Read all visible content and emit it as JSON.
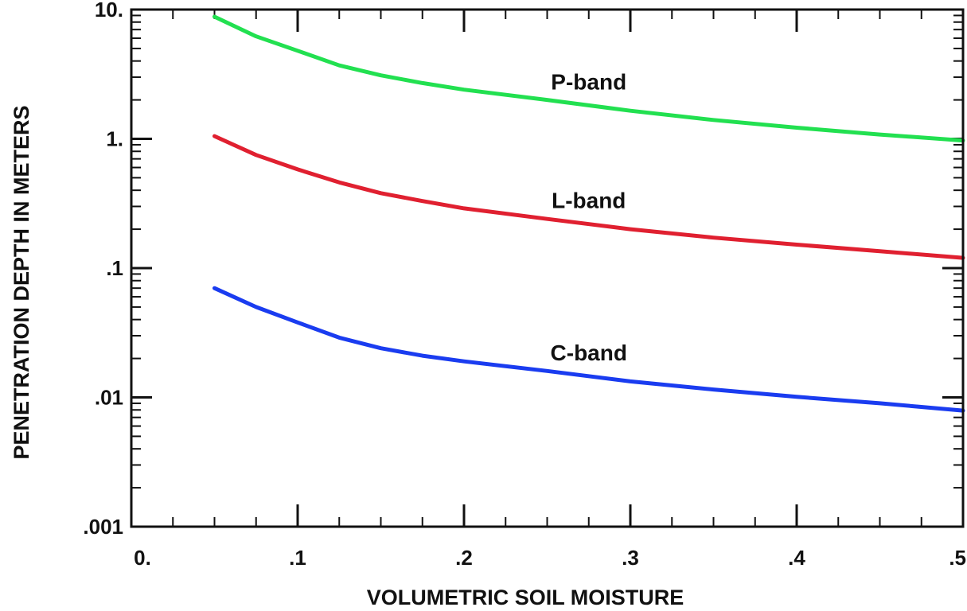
{
  "chart_data": {
    "type": "line",
    "title": "",
    "xlabel": "VOLUMETRIC SOIL MOISTURE",
    "ylabel": "PENETRATION DEPTH IN METERS",
    "xlim": [
      0,
      0.5
    ],
    "ylim": [
      0.001,
      10
    ],
    "yscale": "log",
    "grid": false,
    "x_ticks": [
      0,
      0.1,
      0.2,
      0.3,
      0.4,
      0.5
    ],
    "x_tick_labels": [
      "0.",
      ".1",
      ".2",
      ".3",
      ".4",
      ".5"
    ],
    "y_ticks": [
      10,
      1,
      0.1,
      0.01,
      0.001
    ],
    "y_tick_labels": [
      "10.",
      "1.",
      ".1",
      ".01",
      ".001"
    ],
    "x": [
      0.05,
      0.075,
      0.1,
      0.125,
      0.15,
      0.175,
      0.2,
      0.25,
      0.3,
      0.35,
      0.4,
      0.45,
      0.5
    ],
    "series": [
      {
        "name": "P-band",
        "color": "#22e050",
        "values": [
          8.8,
          6.2,
          4.8,
          3.7,
          3.1,
          2.7,
          2.4,
          2.0,
          1.65,
          1.4,
          1.22,
          1.08,
          0.97
        ]
      },
      {
        "name": "L-band",
        "color": "#e02030",
        "values": [
          1.05,
          0.75,
          0.58,
          0.46,
          0.38,
          0.33,
          0.29,
          0.24,
          0.2,
          0.172,
          0.152,
          0.135,
          0.12
        ]
      },
      {
        "name": "C-band",
        "color": "#1a3cf0",
        "values": [
          0.07,
          0.05,
          0.038,
          0.029,
          0.024,
          0.021,
          0.019,
          0.016,
          0.0133,
          0.0115,
          0.0101,
          0.009,
          0.0079
        ]
      }
    ]
  }
}
